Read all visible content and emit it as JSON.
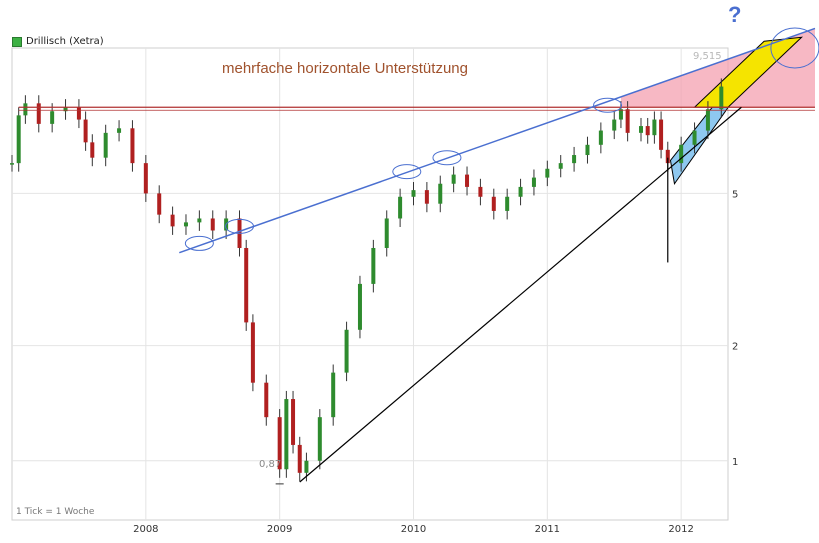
{
  "chart_data": {
    "type": "candlestick",
    "instrument": "Drillisch (Xetra)",
    "footnote": "1 Tick = 1 Woche",
    "annotation": "mehrfache horizontale Unterstützung",
    "question_mark": "?",
    "last_value_label": "9,515",
    "low_value_label": "0,87",
    "y_scale": "log",
    "y_ticks": [
      {
        "value": 1,
        "label": "1"
      },
      {
        "value": 2,
        "label": "2"
      },
      {
        "value": 5,
        "label": "5"
      }
    ],
    "x_ticks": [
      {
        "value": 2008.0,
        "label": "2008"
      },
      {
        "value": 2009.0,
        "label": "2009"
      },
      {
        "value": 2010.0,
        "label": "2010"
      },
      {
        "value": 2011.0,
        "label": "2011"
      },
      {
        "value": 2012.0,
        "label": "2012"
      }
    ],
    "series": [
      {
        "x": 2007.0,
        "y": 6.0
      },
      {
        "x": 2007.05,
        "y": 8.0
      },
      {
        "x": 2007.1,
        "y": 8.6
      },
      {
        "x": 2007.2,
        "y": 7.6
      },
      {
        "x": 2007.3,
        "y": 8.2
      },
      {
        "x": 2007.4,
        "y": 8.4
      },
      {
        "x": 2007.5,
        "y": 7.8
      },
      {
        "x": 2007.55,
        "y": 6.8
      },
      {
        "x": 2007.6,
        "y": 6.2
      },
      {
        "x": 2007.7,
        "y": 7.2
      },
      {
        "x": 2007.8,
        "y": 7.4
      },
      {
        "x": 2007.9,
        "y": 6.0
      },
      {
        "x": 2008.0,
        "y": 5.0
      },
      {
        "x": 2008.1,
        "y": 4.4
      },
      {
        "x": 2008.2,
        "y": 4.1
      },
      {
        "x": 2008.3,
        "y": 4.2
      },
      {
        "x": 2008.4,
        "y": 4.3
      },
      {
        "x": 2008.5,
        "y": 4.0
      },
      {
        "x": 2008.6,
        "y": 4.3
      },
      {
        "x": 2008.7,
        "y": 3.6
      },
      {
        "x": 2008.75,
        "y": 2.3
      },
      {
        "x": 2008.8,
        "y": 1.6
      },
      {
        "x": 2008.9,
        "y": 1.3
      },
      {
        "x": 2009.0,
        "y": 0.95
      },
      {
        "x": 2009.05,
        "y": 1.45
      },
      {
        "x": 2009.1,
        "y": 1.1
      },
      {
        "x": 2009.15,
        "y": 0.93
      },
      {
        "x": 2009.2,
        "y": 1.0
      },
      {
        "x": 2009.3,
        "y": 1.3
      },
      {
        "x": 2009.4,
        "y": 1.7
      },
      {
        "x": 2009.5,
        "y": 2.2
      },
      {
        "x": 2009.6,
        "y": 2.9
      },
      {
        "x": 2009.7,
        "y": 3.6
      },
      {
        "x": 2009.8,
        "y": 4.3
      },
      {
        "x": 2009.9,
        "y": 4.9
      },
      {
        "x": 2010.0,
        "y": 5.1
      },
      {
        "x": 2010.1,
        "y": 4.7
      },
      {
        "x": 2010.2,
        "y": 5.3
      },
      {
        "x": 2010.3,
        "y": 5.6
      },
      {
        "x": 2010.4,
        "y": 5.2
      },
      {
        "x": 2010.5,
        "y": 4.9
      },
      {
        "x": 2010.6,
        "y": 4.5
      },
      {
        "x": 2010.7,
        "y": 4.9
      },
      {
        "x": 2010.8,
        "y": 5.2
      },
      {
        "x": 2010.9,
        "y": 5.5
      },
      {
        "x": 2011.0,
        "y": 5.8
      },
      {
        "x": 2011.1,
        "y": 6.0
      },
      {
        "x": 2011.2,
        "y": 6.3
      },
      {
        "x": 2011.3,
        "y": 6.7
      },
      {
        "x": 2011.4,
        "y": 7.3
      },
      {
        "x": 2011.5,
        "y": 7.8
      },
      {
        "x": 2011.55,
        "y": 8.3
      },
      {
        "x": 2011.6,
        "y": 7.2
      },
      {
        "x": 2011.7,
        "y": 7.5
      },
      {
        "x": 2011.75,
        "y": 7.1
      },
      {
        "x": 2011.8,
        "y": 7.8
      },
      {
        "x": 2011.85,
        "y": 6.5
      },
      {
        "x": 2011.9,
        "y": 6.0
      },
      {
        "x": 2012.0,
        "y": 6.7
      },
      {
        "x": 2012.1,
        "y": 7.3
      },
      {
        "x": 2012.2,
        "y": 8.3
      },
      {
        "x": 2012.3,
        "y": 9.515
      }
    ],
    "annotations": [
      {
        "type": "hline",
        "y": 8.4,
        "x0": 2007.05,
        "x1": 2013.0,
        "color": "#b03030"
      },
      {
        "type": "line",
        "x0": 2008.25,
        "y0": 3.5,
        "x1": 2013.0,
        "y1": 13.5,
        "color": "#4a6fd0"
      },
      {
        "type": "line",
        "x0": 2009.15,
        "y0": 0.88,
        "x1": 2012.45,
        "y1": 8.4,
        "color": "#000000"
      },
      {
        "type": "vline",
        "x": 2011.9,
        "y0": 3.3,
        "y1": 6.2,
        "color": "#000000"
      },
      {
        "type": "ellipse",
        "x": 2008.4,
        "y": 3.7,
        "color": "#4a6fd0"
      },
      {
        "type": "ellipse",
        "x": 2008.7,
        "y": 4.1,
        "color": "#4a6fd0"
      },
      {
        "type": "ellipse",
        "x": 2009.95,
        "y": 5.7,
        "color": "#4a6fd0"
      },
      {
        "type": "ellipse",
        "x": 2010.25,
        "y": 6.2,
        "color": "#4a6fd0"
      },
      {
        "type": "ellipse",
        "x": 2011.45,
        "y": 8.5,
        "color": "#4a6fd0"
      },
      {
        "type": "ellipse",
        "x": 2012.85,
        "y": 12.0,
        "color": "#4a6fd0"
      }
    ],
    "colors": {
      "up": "#2e8b2e",
      "down": "#b02020",
      "grid": "#e4e4e4",
      "support_zone": "#f4a0b0",
      "wedge": "#f5e400",
      "channel": "#8ec8f0"
    },
    "xlim": [
      2007.0,
      2012.35
    ],
    "ylim": [
      0.7,
      12.0
    ]
  }
}
